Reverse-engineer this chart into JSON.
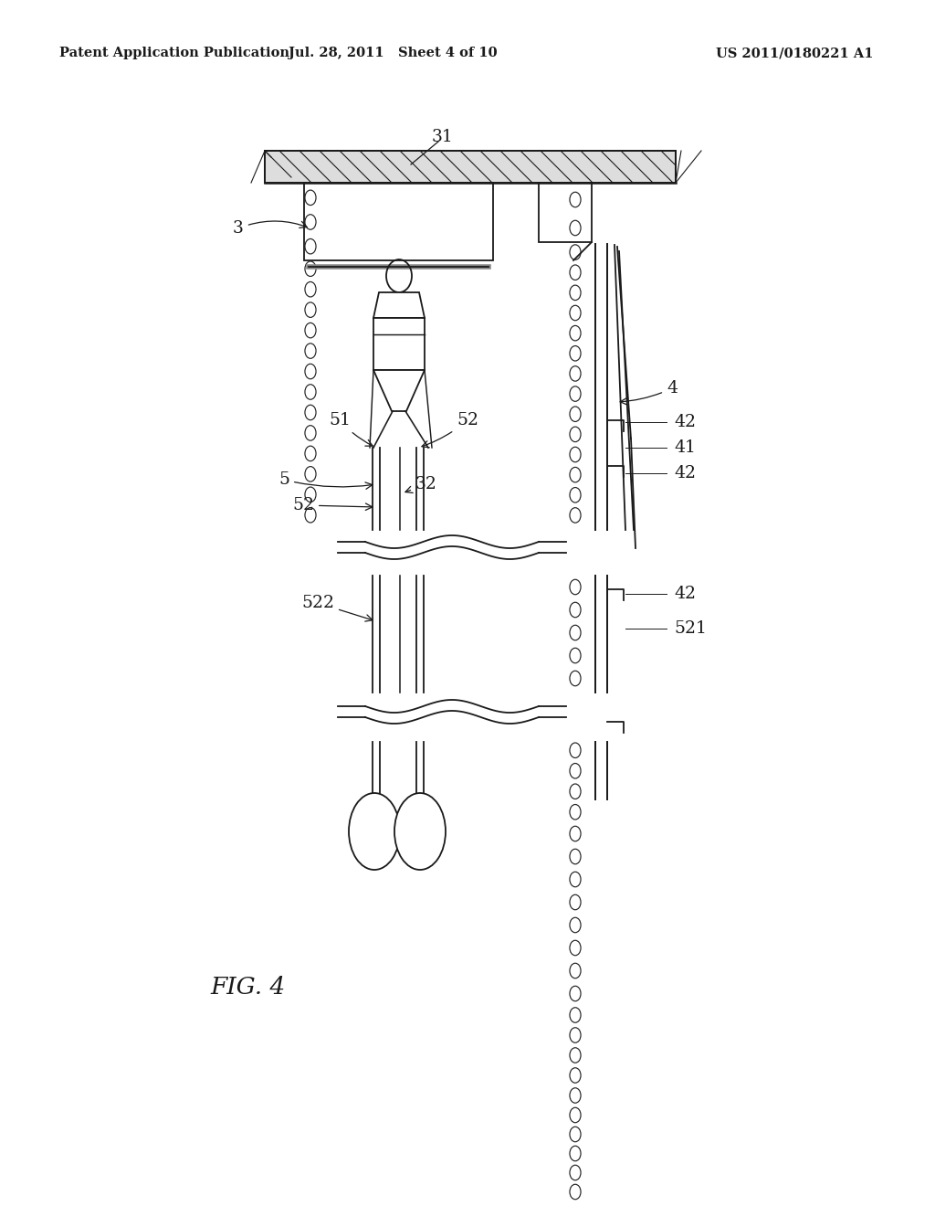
{
  "bg_color": "#ffffff",
  "line_color": "#1a1a1a",
  "header_left": "Patent Application Publication",
  "header_mid": "Jul. 28, 2011   Sheet 4 of 10",
  "header_right": "US 2011/0180221 A1",
  "fig_label": "FIG. 4",
  "lw": 1.3
}
